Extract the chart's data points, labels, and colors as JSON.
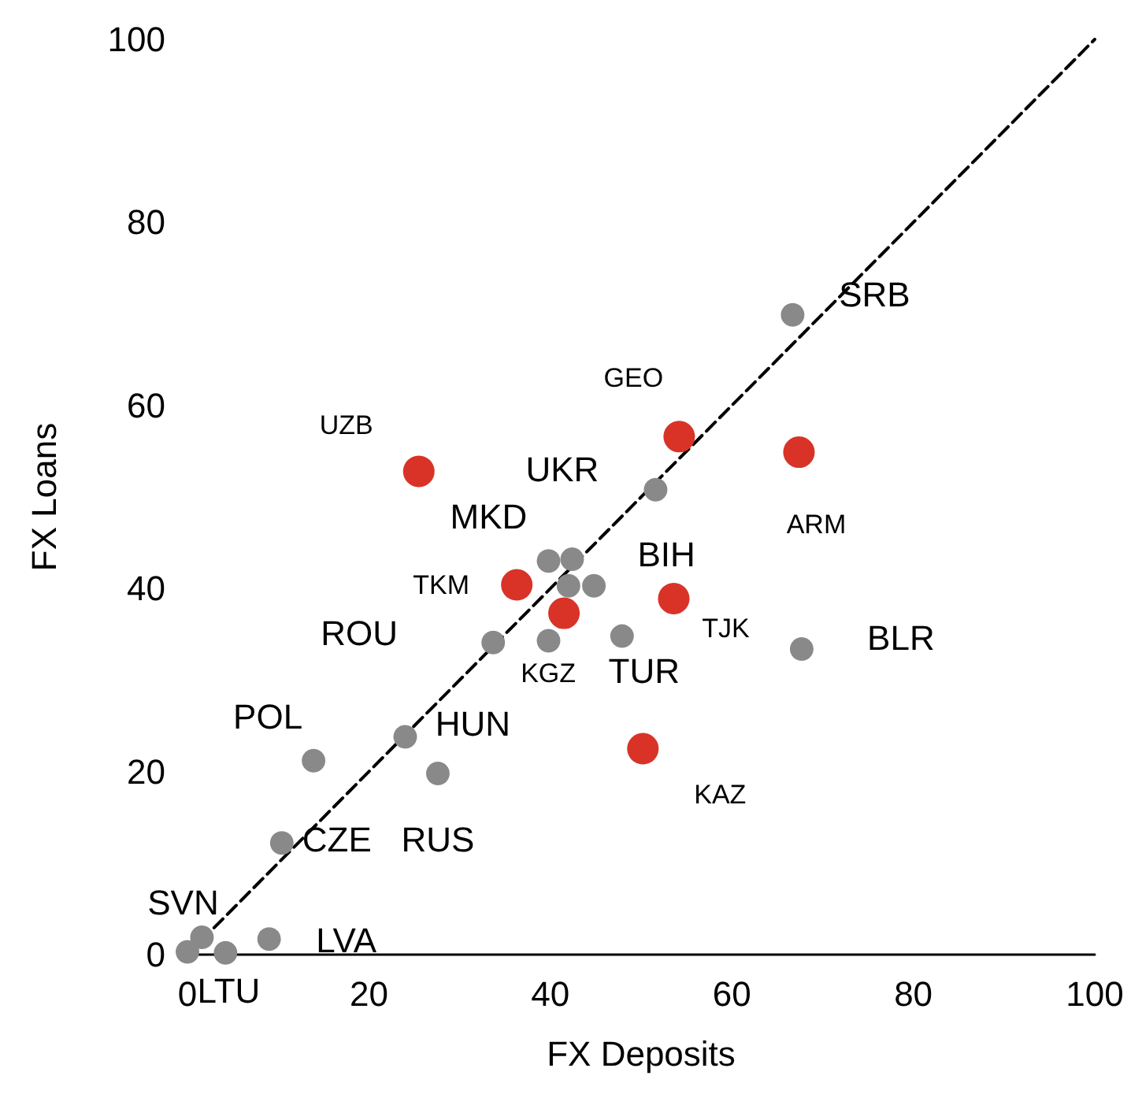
{
  "chart_data": {
    "type": "scatter",
    "xlabel": "FX Deposits",
    "ylabel": "FX Loans",
    "xlim": [
      0,
      100
    ],
    "xticks": [
      0,
      20,
      40,
      60,
      80,
      100
    ],
    "ylim": [
      0,
      100
    ],
    "yticks": [
      0,
      20,
      40,
      60,
      80,
      100
    ],
    "grid": false,
    "marker": "circle",
    "series": [
      {
        "color": "#898989",
        "x": [
          66.7,
          51.6,
          39.8,
          42.4,
          42.0,
          44.8,
          33.7,
          39.8,
          47.9,
          67.7,
          13.9,
          24.0,
          27.6,
          10.4,
          1.6,
          0,
          4.2,
          9.0
        ],
        "values": [
          69.9,
          50.8,
          43.0,
          43.2,
          40.3,
          40.3,
          34.1,
          34.3,
          34.8,
          33.4,
          21.2,
          23.8,
          19.8,
          12.2,
          1.9,
          0.3,
          0.2,
          1.7
        ]
      },
      {
        "color": "#d93328",
        "x": [
          25.5,
          54.2,
          67.4,
          36.3,
          41.5,
          53.6,
          50.2
        ],
        "values": [
          52.8,
          56.6,
          54.9,
          40.4,
          37.3,
          38.9,
          22.5
        ]
      },
      {
        "type": "line",
        "color": "#000000",
        "line_style": "dashed",
        "marker": "none",
        "x": [
          0,
          100
        ],
        "values": [
          0,
          100
        ]
      }
    ],
    "annotations": [
      {
        "text": "SRB",
        "x": 66.7,
        "y": 69.9
      },
      {
        "text": "GEO",
        "x": 54.2,
        "y": 56.6
      },
      {
        "text": "ARM",
        "x": 67.4,
        "y": 54.9
      },
      {
        "text": "UZB",
        "x": 25.5,
        "y": 52.8
      },
      {
        "text": "UKR",
        "x": 42.0,
        "y": 40.3
      },
      {
        "text": "MKD",
        "x": 42.4,
        "y": 43.2
      },
      {
        "text": "BIH",
        "x": 44.8,
        "y": 40.3
      },
      {
        "text": "TKM",
        "x": 36.3,
        "y": 40.4
      },
      {
        "text": "ROU",
        "x": 33.7,
        "y": 34.1
      },
      {
        "text": "TJK",
        "x": 53.6,
        "y": 38.9
      },
      {
        "text": "BLR",
        "x": 67.7,
        "y": 33.4
      },
      {
        "text": "KGZ",
        "x": 41.5,
        "y": 37.3
      },
      {
        "text": "TUR",
        "x": 47.9,
        "y": 34.8
      },
      {
        "text": "POL",
        "x": 13.9,
        "y": 21.2
      },
      {
        "text": "HUN",
        "x": 24.0,
        "y": 23.8
      },
      {
        "text": "CZE",
        "x": 10.4,
        "y": 12.2
      },
      {
        "text": "RUS",
        "x": 27.6,
        "y": 19.8
      },
      {
        "text": "SVN",
        "x": 1.6,
        "y": 1.9
      },
      {
        "text": "LVA",
        "x": 9.0,
        "y": 1.7
      },
      {
        "text": "LTU",
        "x": 4.2,
        "y": 0.2
      },
      {
        "text": "KAZ",
        "x": 50.2,
        "y": 22.5
      }
    ]
  }
}
